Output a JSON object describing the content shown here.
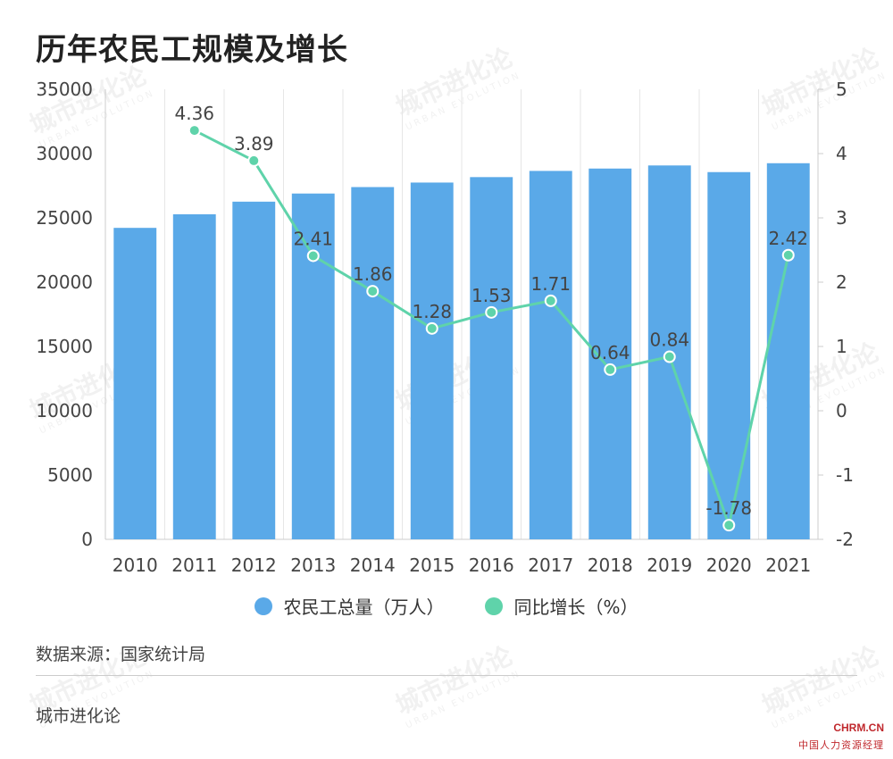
{
  "title": "历年农民工规模及增长",
  "chart_data": {
    "type": "bar",
    "categories": [
      "2010",
      "2011",
      "2012",
      "2013",
      "2014",
      "2015",
      "2016",
      "2017",
      "2018",
      "2019",
      "2020",
      "2021"
    ],
    "series": [
      {
        "name": "农民工总量（万人）",
        "type": "bar",
        "axis": "left",
        "color": "#5aa9e8",
        "values": [
          24223,
          25278,
          26261,
          26894,
          27395,
          27747,
          28171,
          28652,
          28836,
          29077,
          28560,
          29251
        ]
      },
      {
        "name": "同比增长（%）",
        "type": "line",
        "axis": "right",
        "color": "#5fd3aa",
        "values": [
          null,
          4.36,
          3.89,
          2.41,
          1.86,
          1.28,
          1.53,
          1.71,
          0.64,
          0.84,
          -1.78,
          2.42
        ],
        "labels": [
          "",
          "4.36",
          "3.89",
          "2.41",
          "1.86",
          "1.28",
          "1.53",
          "1.71",
          "0.64",
          "0.84",
          "-1.78",
          "2.42"
        ]
      }
    ],
    "left_axis": {
      "ylim": [
        0,
        35000
      ],
      "ticks": [
        "0",
        "5000",
        "10000",
        "15000",
        "20000",
        "25000",
        "30000",
        "35000"
      ]
    },
    "right_axis": {
      "ylim": [
        -2,
        5
      ],
      "ticks": [
        "-2",
        "-1",
        "0",
        "1",
        "2",
        "3",
        "4",
        "5"
      ]
    },
    "grid": "vertical",
    "legend": "bottom"
  },
  "source": "数据来源：国家统计局",
  "brand": "城市进化论",
  "watermark": {
    "cn": "城市进化论",
    "en": "URBAN EVOLUTION"
  },
  "logo": {
    "main": "CHRM",
    "suffix": ".CN",
    "sub": "中国人力资源经理"
  }
}
